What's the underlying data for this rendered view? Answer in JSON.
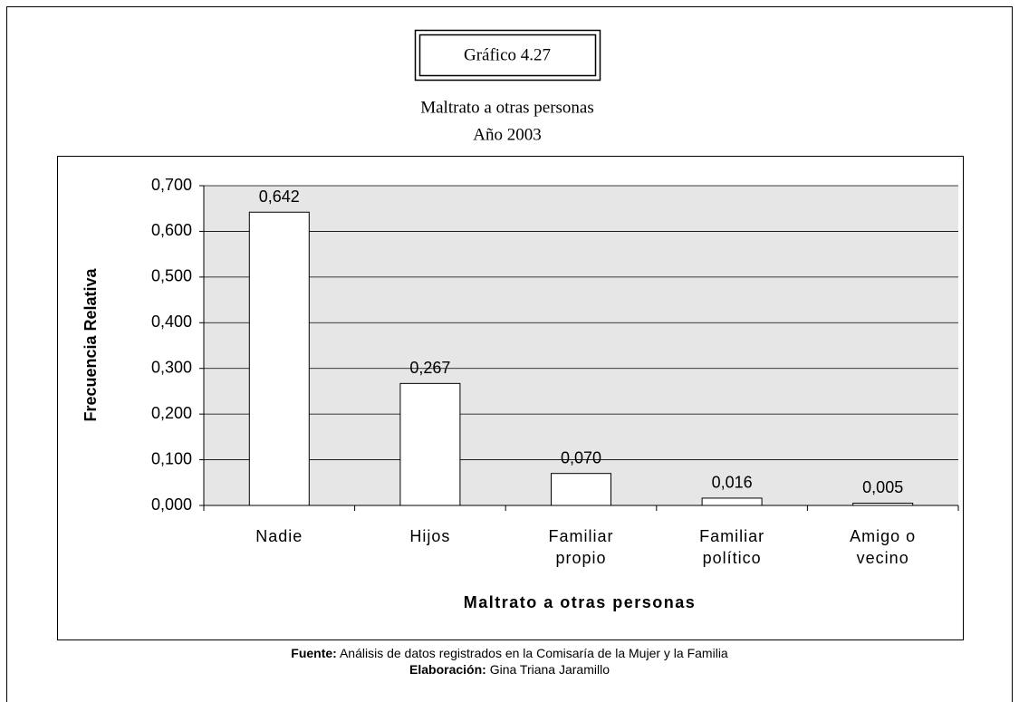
{
  "figure_label": "Gráfico 4.27",
  "chart_data": {
    "type": "bar",
    "title": "Maltrato a otras personas",
    "subtitle": "Año 2003",
    "xlabel": "Maltrato a otras personas",
    "ylabel": "Frecuencia Relativa",
    "categories": [
      "Nadie",
      "Hijos",
      "Familiar propio",
      "Familiar político",
      "Amigo o vecino"
    ],
    "values": [
      0.642,
      0.267,
      0.07,
      0.016,
      0.005
    ],
    "value_labels": [
      "0,642",
      "0,267",
      "0,070",
      "0,016",
      "0,005"
    ],
    "color": "#ffffff",
    "ylim": [
      0,
      0.7
    ],
    "yticks": [
      {
        "value": 0,
        "label": "0,000"
      },
      {
        "value": 0.1,
        "label": "0,100"
      },
      {
        "value": 0.2,
        "label": "0,200"
      },
      {
        "value": 0.3,
        "label": "0,300"
      },
      {
        "value": 0.4,
        "label": "0,400"
      },
      {
        "value": 0.5,
        "label": "0,500"
      },
      {
        "value": 0.6,
        "label": "0,600"
      },
      {
        "value": 0.7,
        "label": "0,700"
      }
    ],
    "grid": true
  },
  "footer": {
    "source_label": "Fuente:",
    "source": "Análisis de datos registrados en la Comisaría de la Mujer y la Familia",
    "credit_label": "Elaboración:",
    "credit": "Gina Triana Jaramillo"
  }
}
